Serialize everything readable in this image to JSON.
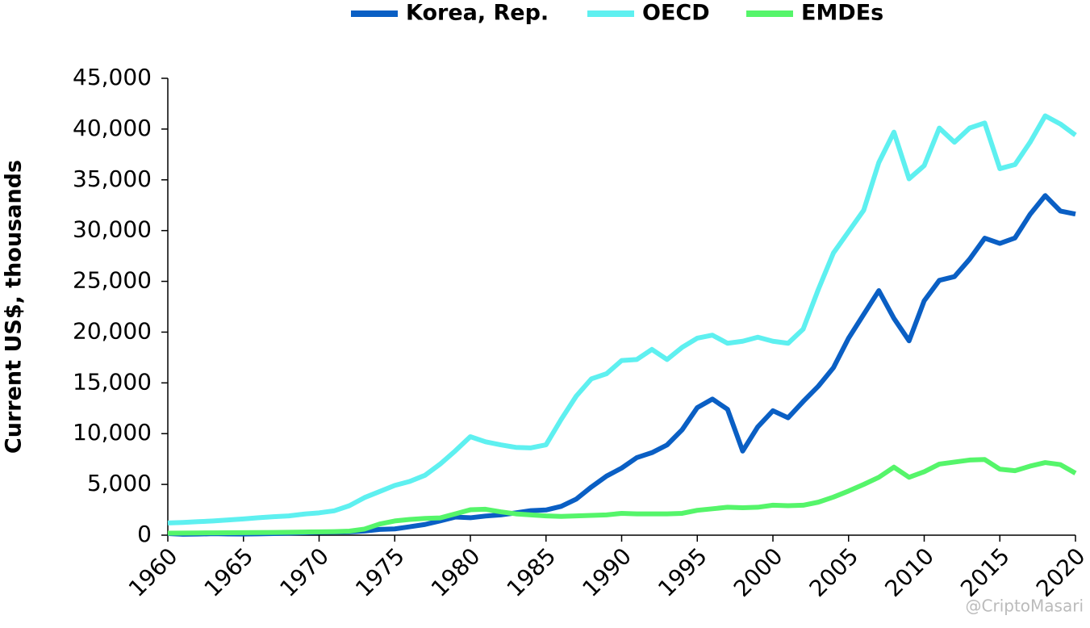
{
  "chart_data": {
    "type": "line",
    "y_label": "Current US$, thousands",
    "watermark": "@CriptoMasari",
    "x": [
      1960,
      1961,
      1962,
      1963,
      1964,
      1965,
      1966,
      1967,
      1968,
      1969,
      1970,
      1971,
      1972,
      1973,
      1974,
      1975,
      1976,
      1977,
      1978,
      1979,
      1980,
      1981,
      1982,
      1983,
      1984,
      1985,
      1986,
      1987,
      1988,
      1989,
      1990,
      1991,
      1992,
      1993,
      1994,
      1995,
      1996,
      1997,
      1998,
      1999,
      2000,
      2001,
      2002,
      2003,
      2004,
      2005,
      2006,
      2007,
      2008,
      2009,
      2010,
      2011,
      2012,
      2013,
      2014,
      2015,
      2016,
      2017,
      2018,
      2019,
      2020
    ],
    "series": [
      {
        "name": "Korea, Rep.",
        "color": "#0a5fc4",
        "values": [
          158,
          94,
          106,
          146,
          124,
          109,
          133,
          161,
          198,
          243,
          279,
          301,
          324,
          406,
          563,
          615,
          830,
          1052,
          1406,
          1784,
          1715,
          1883,
          1992,
          2199,
          2413,
          2482,
          2834,
          3555,
          4749,
          5817,
          6610,
          7637,
          8127,
          8885,
          10385,
          12565,
          13403,
          12398,
          8282,
          10672,
          12257,
          11561,
          13165,
          14673,
          16496,
          19403,
          21743,
          24086,
          21350,
          19144,
          23087,
          25096,
          25467,
          27182,
          29250,
          28737,
          29274,
          31601,
          33447,
          31929,
          31631
        ]
      },
      {
        "name": "OECD",
        "color": "#5ef0f0",
        "values": [
          1200,
          1250,
          1330,
          1400,
          1500,
          1600,
          1720,
          1820,
          1900,
          2080,
          2200,
          2400,
          2900,
          3700,
          4300,
          4900,
          5300,
          5900,
          7000,
          8300,
          9700,
          9200,
          8900,
          8650,
          8600,
          8900,
          11400,
          13700,
          15400,
          15900,
          17200,
          17300,
          18300,
          17300,
          18500,
          19400,
          19700,
          18900,
          19100,
          19500,
          19100,
          18900,
          20300,
          24200,
          27800,
          29900,
          32000,
          36700,
          39700,
          35100,
          36400,
          40100,
          38700,
          40100,
          40600,
          36100,
          36500,
          38700,
          41300,
          40500,
          39400
        ]
      },
      {
        "name": "EMDEs",
        "color": "#55f56a",
        "values": [
          200,
          210,
          220,
          230,
          240,
          250,
          260,
          270,
          290,
          310,
          330,
          350,
          400,
          600,
          1100,
          1400,
          1550,
          1650,
          1700,
          2100,
          2500,
          2550,
          2300,
          2100,
          2000,
          1900,
          1850,
          1900,
          1950,
          2000,
          2150,
          2100,
          2100,
          2100,
          2150,
          2450,
          2600,
          2750,
          2700,
          2750,
          2950,
          2900,
          2950,
          3250,
          3750,
          4350,
          5000,
          5700,
          6700,
          5700,
          6250,
          7000,
          7200,
          7400,
          7450,
          6500,
          6350,
          6800,
          7150,
          6950,
          6100
        ]
      }
    ],
    "xlim": [
      1960,
      2020
    ],
    "xticks": [
      1960,
      1965,
      1970,
      1975,
      1980,
      1985,
      1990,
      1995,
      2000,
      2005,
      2010,
      2015,
      2020
    ],
    "ylim": [
      0,
      45000
    ],
    "yticks": [
      0,
      {
        "value": 5000,
        "label": "5,000"
      },
      {
        "value": 10000,
        "label": "10,000"
      },
      {
        "value": 15000,
        "label": "15,000"
      },
      {
        "value": 20000,
        "label": "20,000"
      },
      {
        "value": 25000,
        "label": "25,000"
      },
      {
        "value": 30000,
        "label": "30,000"
      },
      {
        "value": 35000,
        "label": "35,000"
      },
      {
        "value": 40000,
        "label": "40,000"
      },
      {
        "value": 45000,
        "label": "45,000"
      }
    ],
    "legend": "top"
  }
}
